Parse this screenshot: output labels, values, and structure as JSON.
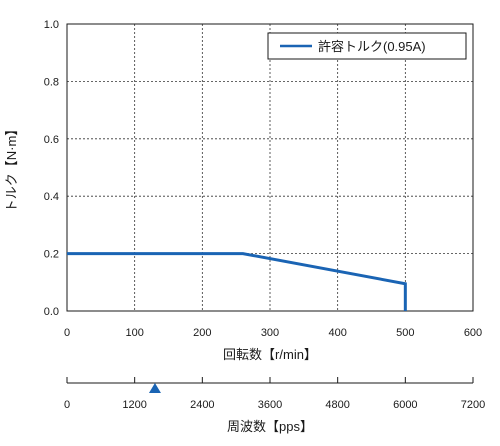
{
  "chart_data": {
    "type": "line",
    "ylabel": "トルク【N·m】",
    "xlabel": "回転数【r/min】",
    "xlim": [
      0,
      600
    ],
    "ylim": [
      0,
      1.0
    ],
    "x_ticks": [
      "0",
      "100",
      "200",
      "300",
      "400",
      "500",
      "600"
    ],
    "y_ticks": [
      "0.0",
      "0.2",
      "0.4",
      "0.6",
      "0.8",
      "1.0"
    ],
    "x_tick_values": [
      0,
      100,
      200,
      300,
      400,
      500,
      600
    ],
    "y_tick_values": [
      0,
      0.2,
      0.4,
      0.6,
      0.8,
      1.0
    ],
    "grid": true,
    "legend_position": "top-right",
    "series": [
      {
        "name": "許容トルク(0.95A)",
        "color": "#1a64b4",
        "x": [
          0,
          260,
          500,
          500
        ],
        "y": [
          0.2,
          0.2,
          0.095,
          0
        ]
      }
    ],
    "secondary_axis": {
      "label": "周波数【pps】",
      "ticks": [
        "0",
        "1200",
        "2400",
        "3600",
        "4800",
        "6000",
        "7200"
      ],
      "tick_values": [
        0,
        1200,
        2400,
        3600,
        4800,
        6000,
        7200
      ],
      "range": [
        0,
        7200
      ],
      "marker_value": 1560,
      "marker_color": "#1a64b4"
    }
  }
}
